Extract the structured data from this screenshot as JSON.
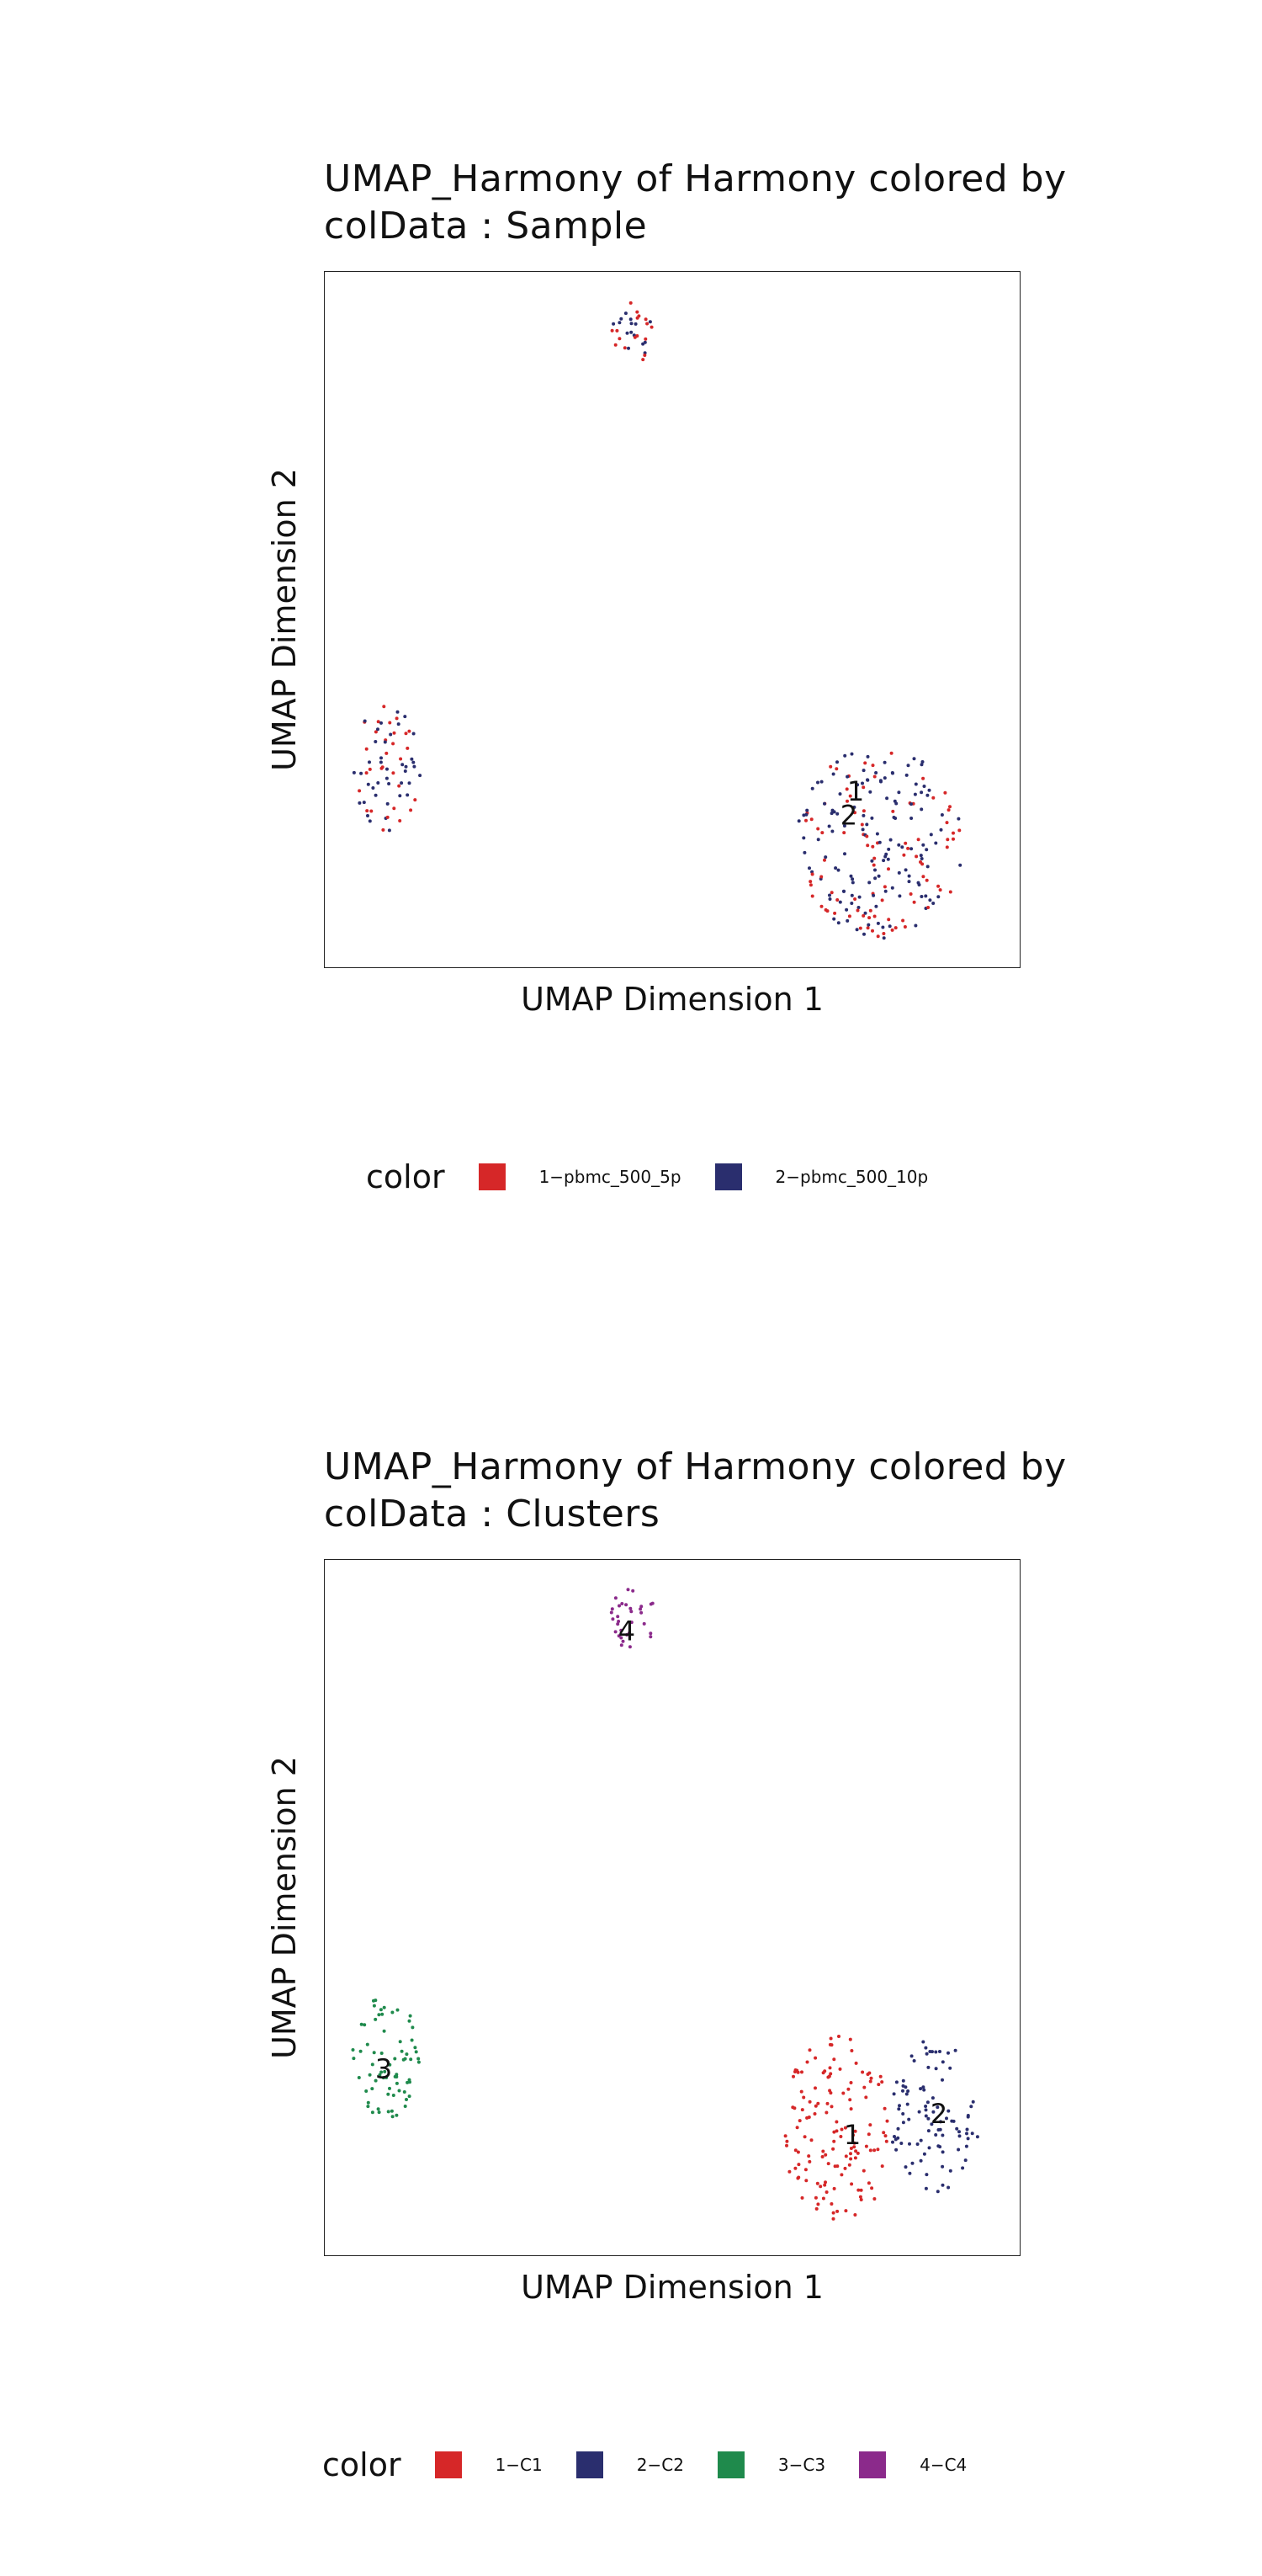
{
  "charts": [
    {
      "title_line1": "UMAP_Harmony of Harmony  colored by",
      "title_line2": "colData :  Sample",
      "legend_title": "color"
    },
    {
      "title_line1": "UMAP_Harmony of Harmony  colored by",
      "title_line2": "colData :  Clusters",
      "legend_title": "color"
    }
  ],
  "chart_data": [
    {
      "type": "scatter",
      "title": "UMAP_Harmony of Harmony  colored by colData :  Sample",
      "xlabel": "UMAP Dimension 1",
      "ylabel": "UMAP Dimension 2",
      "xlim": [
        0,
        100
      ],
      "ylim": [
        0,
        100
      ],
      "grid": false,
      "legend_position": "bottom",
      "series": [
        {
          "name": "1−pbmc_500_5p",
          "color": "#d62728"
        },
        {
          "name": "2−pbmc_500_10p",
          "color": "#2a2e6e"
        }
      ],
      "clusters": [
        {
          "cx": 80,
          "cy": 18,
          "rx": 12,
          "ry": 14,
          "n": 230,
          "label": "1",
          "lx": 77,
          "ly": 25.5,
          "mix": [
            0.45,
            0.55
          ]
        },
        {
          "cx": 9,
          "cy": 28.5,
          "rx": 5,
          "ry": 9,
          "n": 70,
          "label": "",
          "mix": [
            0.45,
            0.55
          ]
        },
        {
          "cx": 44.5,
          "cy": 91.5,
          "rx": 3.5,
          "ry": 4.5,
          "n": 32,
          "label": "",
          "mix": [
            0.5,
            0.5
          ]
        }
      ],
      "text_labels": [
        {
          "text": "1",
          "x": 76.5,
          "y": 25
        },
        {
          "text": "2",
          "x": 75.5,
          "y": 21.5
        }
      ]
    },
    {
      "type": "scatter",
      "title": "UMAP_Harmony of Harmony  colored by colData :  Clusters",
      "xlabel": "UMAP Dimension 1",
      "ylabel": "UMAP Dimension 2",
      "xlim": [
        0,
        100
      ],
      "ylim": [
        0,
        100
      ],
      "grid": false,
      "legend_position": "bottom",
      "series": [
        {
          "name": "1−C1",
          "color": "#d62728"
        },
        {
          "name": "2−C2",
          "color": "#2a2e6e"
        },
        {
          "name": "3−C3",
          "color": "#1f8a4c"
        },
        {
          "name": "4−C4",
          "color": "#8b2a8b"
        }
      ],
      "clusters": [
        {
          "cx": 74,
          "cy": 18,
          "rx": 8,
          "ry": 14,
          "n": 140,
          "series": 0
        },
        {
          "cx": 88,
          "cy": 20,
          "rx": 7,
          "ry": 11,
          "n": 95,
          "series": 1
        },
        {
          "cx": 9,
          "cy": 28.5,
          "rx": 5,
          "ry": 9,
          "n": 70,
          "series": 2
        },
        {
          "cx": 44.5,
          "cy": 91.5,
          "rx": 3.5,
          "ry": 4.5,
          "n": 32,
          "series": 3
        }
      ],
      "text_labels": [
        {
          "text": "1",
          "x": 76,
          "y": 17
        },
        {
          "text": "2",
          "x": 88.5,
          "y": 20
        },
        {
          "text": "3",
          "x": 8.5,
          "y": 26.5
        },
        {
          "text": "4",
          "x": 43.5,
          "y": 89.5
        }
      ]
    }
  ]
}
